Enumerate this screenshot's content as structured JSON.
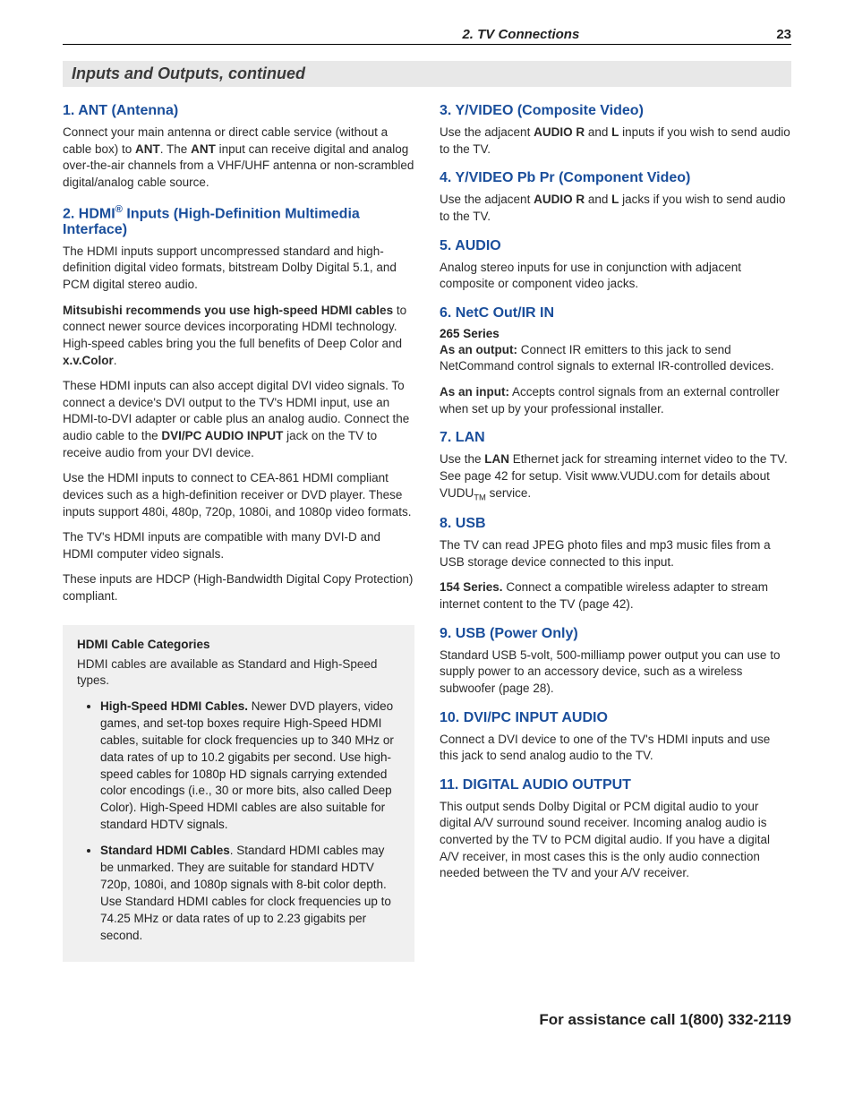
{
  "header": {
    "chapter": "2. TV Connections",
    "page_number": "23"
  },
  "section_title": "Inputs and Outputs, continued",
  "left_col": {
    "h1": "1.  ANT (Antenna)",
    "p1a": "Connect your main antenna or direct cable service (without a cable box) to ",
    "p1b": "ANT",
    "p1c": ". The ",
    "p1d": "ANT",
    "p1e": " input can receive digital and analog over-the-air channels from a VHF/UHF antenna or non-scrambled digital/analog cable source.",
    "h2_a": "2.  HDMI",
    "h2_sup": "®",
    "h2_b": " Inputs (High-Definition Multimedia Interface)",
    "p2": "The HDMI inputs support uncompressed standard and high-definition digital video formats, bitstream Dolby Digital 5.1, and PCM digital stereo audio.",
    "p3a": "Mitsubishi recommends you use high-speed HDMI cables",
    "p3b": " to connect newer source devices incorporating HDMI technology. High-speed cables bring you the full benefits of Deep Color and ",
    "p3c": "x.v.Color",
    "p3d": ".",
    "p4a": "These HDMI inputs can also accept digital DVI video signals. To connect a device's DVI output to the TV's HDMI input, use an HDMI-to-DVI adapter or cable plus an analog audio. Connect the audio cable to the ",
    "p4b": "DVI/PC AUDIO INPUT",
    "p4c": " jack on the TV to receive audio from your DVI device.",
    "p5": "Use the HDMI inputs to connect to CEA-861 HDMI compliant devices such as a high-definition receiver or DVD player. These inputs support 480i, 480p, 720p, 1080i, and 1080p video formats.",
    "p6": "The TV's HDMI inputs are compatible with many DVI-D and HDMI computer video signals.",
    "p7": "These inputs are HDCP (High-Bandwidth Digital Copy Protection) compliant.",
    "box": {
      "title": "HDMI Cable Categories",
      "intro": "HDMI cables are available as Standard and High-Speed types.",
      "li1a": "High-Speed HDMI Cables.",
      "li1b": " Newer DVD players, video games, and set-top boxes require High-Speed HDMI cables, suitable for clock frequencies up to 340 MHz or data rates of up to 10.2 gigabits per second. Use high-speed cables for 1080p HD signals carrying extended color encodings (i.e., 30 or more bits, also called Deep Color). High-Speed HDMI cables are also suitable for standard HDTV signals.",
      "li2a": "Standard HDMI Cables",
      "li2b": ". Standard HDMI cables may be unmarked. They are suitable for standard HDTV 720p, 1080i, and 1080p signals with 8-bit color depth. Use Standard HDMI cables for clock frequencies up to 74.25 MHz or data rates of up to 2.23 gigabits per second."
    }
  },
  "right_col": {
    "h3": "3.  Y/VIDEO (Composite Video)",
    "p3a": "Use the adjacent ",
    "p3b": "AUDIO R",
    "p3c": " and ",
    "p3d": "L",
    "p3e": " inputs if you wish to send audio to the TV.",
    "h4": "4.  Y/VIDEO Pb Pr (Component Video)",
    "p4a": "Use the adjacent ",
    "p4b": "AUDIO R",
    "p4c": " and ",
    "p4d": "L",
    "p4e": " jacks if you wish to send audio to the TV.",
    "h5": "5.  AUDIO",
    "p5": "Analog stereo inputs for use in conjunction with adjacent composite or component video jacks.",
    "h6": "6.  NetC Out/IR IN",
    "sub6": "265 Series",
    "p6a1": "As an output:",
    "p6a2": " Connect IR emitters to this jack to send NetCommand control signals to external IR-controlled devices.",
    "p6b1": "As an input:",
    "p6b2": " Accepts control signals from an external controller when set up by your professional installer.",
    "h7": "7.  LAN",
    "p7a": "Use the ",
    "p7b": "LAN",
    "p7c": " Ethernet jack for streaming internet video to the TV. See page 42 for setup. Visit www.VUDU.com for details about VUDU",
    "p7d": "TM",
    "p7e": " service.",
    "h8": "8.  USB",
    "p8": "The TV can read JPEG photo files and mp3 music files from a USB storage device connected to this input.",
    "p8b1": "154 Series.",
    "p8b2": " Connect a compatible wireless adapter to stream internet content to the TV (page 42).",
    "h9": "9.  USB (Power Only)",
    "p9": "Standard USB 5-volt, 500-milliamp power output you can use to supply power to an accessory device, such as a wireless subwoofer (page 28).",
    "h10": "10.  DVI/PC INPUT AUDIO",
    "p10": "Connect a DVI device to one of the TV's HDMI inputs and use this jack to send analog audio to the TV.",
    "h11": "11.  DIGITAL AUDIO OUTPUT",
    "p11": "This output sends Dolby Digital or PCM digital audio to your digital A/V surround sound receiver. Incoming analog audio is converted by the TV to PCM digital audio. If you have a digital A/V receiver, in most cases this is the only audio connection needed between the TV and your A/V receiver."
  },
  "footer": "For assistance call 1(800) 332-2119"
}
